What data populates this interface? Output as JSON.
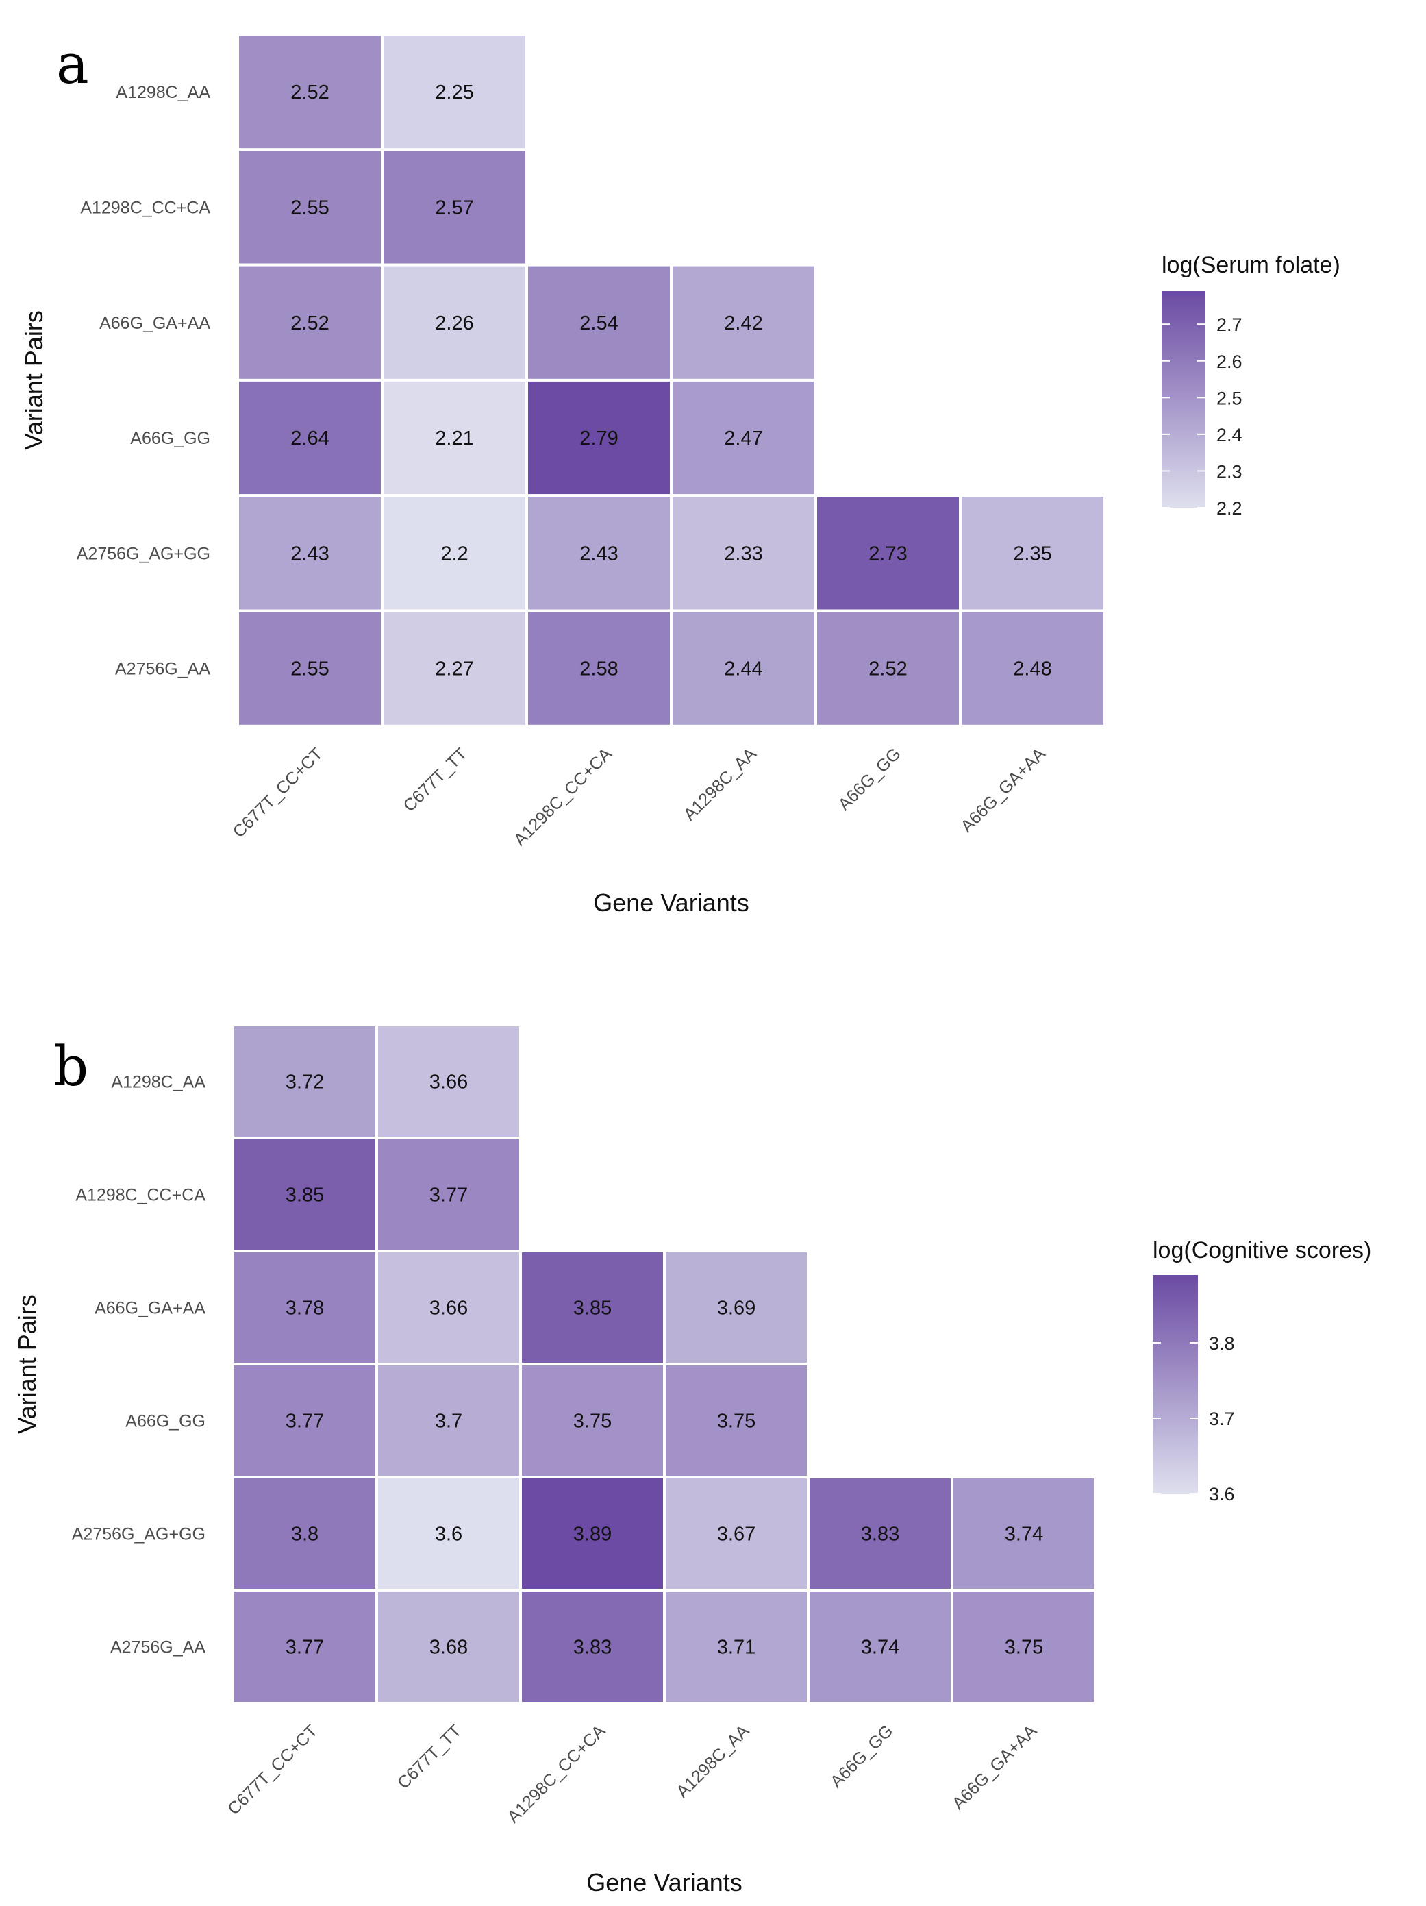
{
  "chart_data": [
    {
      "type": "heatmap",
      "panel_label": "a",
      "xlabel": "Gene Variants",
      "ylabel": "Variant Pairs",
      "legend_title": "log(Serum folate)",
      "legend_ticks": [
        2.2,
        2.3,
        2.4,
        2.5,
        2.6,
        2.7
      ],
      "color_range": [
        2.2,
        2.79
      ],
      "colors": {
        "low": "#dedfee",
        "high": "#6b4ba3"
      },
      "legend_placement": "right",
      "columns": [
        "C677T_CC+CT",
        "C677T_TT",
        "A1298C_CC+CA",
        "A1298C_AA",
        "A66G_GG",
        "A66G_GA+AA"
      ],
      "rows": [
        "A1298C_AA",
        "A1298C_CC+CA",
        "A66G_GA+AA",
        "A66G_GG",
        "A2756G_AG+GG",
        "A2756G_AA"
      ],
      "values": [
        [
          2.52,
          2.25,
          null,
          null,
          null,
          null
        ],
        [
          2.55,
          2.57,
          null,
          null,
          null,
          null
        ],
        [
          2.52,
          2.26,
          2.54,
          2.42,
          null,
          null
        ],
        [
          2.64,
          2.21,
          2.79,
          2.47,
          null,
          null
        ],
        [
          2.43,
          2.2,
          2.43,
          2.33,
          2.73,
          2.35
        ],
        [
          2.55,
          2.27,
          2.58,
          2.44,
          2.52,
          2.48
        ]
      ]
    },
    {
      "type": "heatmap",
      "panel_label": "b",
      "xlabel": "Gene Variants",
      "ylabel": "Variant Pairs",
      "legend_title": "log(Cognitive scores)",
      "legend_ticks": [
        3.6,
        3.7,
        3.8
      ],
      "color_range": [
        3.6,
        3.89
      ],
      "colors": {
        "low": "#dedfee",
        "high": "#6b4ba3"
      },
      "legend_placement": "right",
      "columns": [
        "C677T_CC+CT",
        "C677T_TT",
        "A1298C_CC+CA",
        "A1298C_AA",
        "A66G_GG",
        "A66G_GA+AA"
      ],
      "rows": [
        "A1298C_AA",
        "A1298C_CC+CA",
        "A66G_GA+AA",
        "A66G_GG",
        "A2756G_AG+GG",
        "A2756G_AA"
      ],
      "values": [
        [
          3.72,
          3.66,
          null,
          null,
          null,
          null
        ],
        [
          3.85,
          3.77,
          null,
          null,
          null,
          null
        ],
        [
          3.78,
          3.66,
          3.85,
          3.69,
          null,
          null
        ],
        [
          3.77,
          3.7,
          3.75,
          3.75,
          null,
          null
        ],
        [
          3.8,
          3.6,
          3.89,
          3.67,
          3.83,
          3.74
        ],
        [
          3.77,
          3.68,
          3.83,
          3.71,
          3.74,
          3.75
        ]
      ]
    }
  ]
}
